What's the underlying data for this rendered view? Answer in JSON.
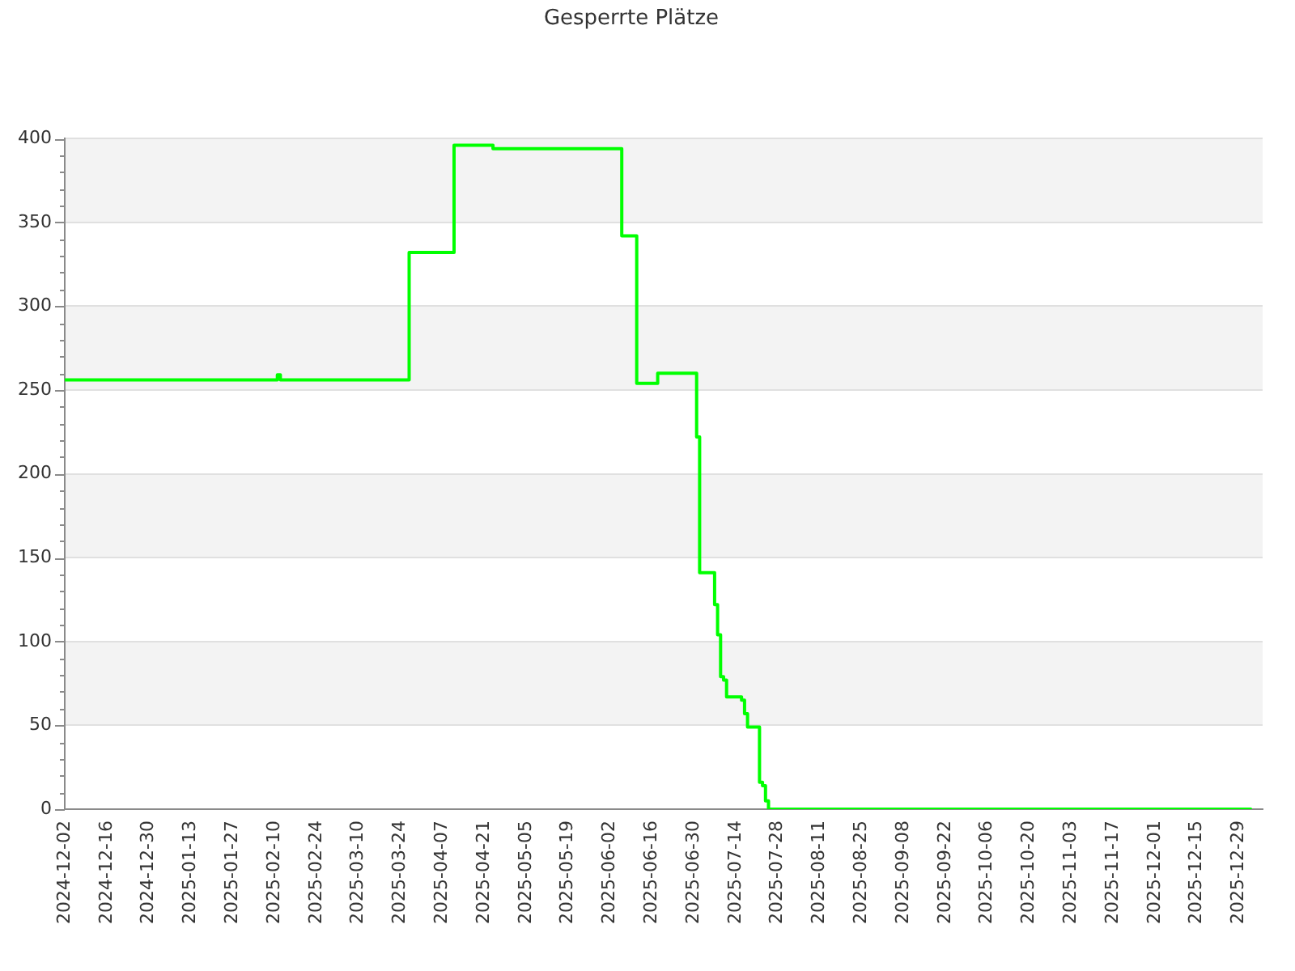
{
  "chart_data": {
    "type": "step",
    "title": "Gesperrte Plätze",
    "x": [
      "2024-12-02",
      "2025-02-11",
      "2025-02-12",
      "2025-03-27",
      "2025-04-11",
      "2025-04-24",
      "2025-06-06",
      "2025-06-11",
      "2025-06-18",
      "2025-07-01",
      "2025-07-02",
      "2025-07-07",
      "2025-07-08",
      "2025-07-09",
      "2025-07-10",
      "2025-07-11",
      "2025-07-16",
      "2025-07-17",
      "2025-07-18",
      "2025-07-22",
      "2025-07-23",
      "2025-07-24",
      "2025-07-25",
      "2026-01-02"
    ],
    "values": [
      256,
      259,
      256,
      332,
      396,
      394,
      342,
      254,
      260,
      222,
      141,
      122,
      104,
      79,
      77,
      67,
      65,
      57,
      49,
      16,
      14,
      5,
      0,
      0
    ],
    "color": "#00ff00",
    "marker": "none",
    "grid": "y",
    "xlim": [
      "2024-12-02",
      "2026-01-06"
    ],
    "xticks": [
      "2024-12-02",
      "2024-12-16",
      "2024-12-30",
      "2025-01-13",
      "2025-01-27",
      "2025-02-10",
      "2025-02-24",
      "2025-03-10",
      "2025-03-24",
      "2025-04-07",
      "2025-04-21",
      "2025-05-05",
      "2025-05-19",
      "2025-06-02",
      "2025-06-16",
      "2025-06-30",
      "2025-07-14",
      "2025-07-28",
      "2025-08-11",
      "2025-08-25",
      "2025-09-08",
      "2025-09-22",
      "2025-10-06",
      "2025-10-20",
      "2025-11-03",
      "2025-11-17",
      "2025-12-01",
      "2025-12-15",
      "2025-12-29"
    ],
    "ylim": [
      0,
      400
    ],
    "yticks": [
      0,
      {
        "value": 10,
        "label": null
      },
      {
        "value": 20,
        "label": null
      },
      {
        "value": 30,
        "label": null
      },
      {
        "value": 40,
        "label": null
      },
      50,
      {
        "value": 60,
        "label": null
      },
      {
        "value": 70,
        "label": null
      },
      {
        "value": 80,
        "label": null
      },
      {
        "value": 90,
        "label": null
      },
      100,
      {
        "value": 110,
        "label": null
      },
      {
        "value": 120,
        "label": null
      },
      {
        "value": 130,
        "label": null
      },
      {
        "value": 140,
        "label": null
      },
      150,
      {
        "value": 160,
        "label": null
      },
      {
        "value": 170,
        "label": null
      },
      {
        "value": 180,
        "label": null
      },
      {
        "value": 190,
        "label": null
      },
      200,
      {
        "value": 210,
        "label": null
      },
      {
        "value": 220,
        "label": null
      },
      {
        "value": 230,
        "label": null
      },
      {
        "value": 240,
        "label": null
      },
      250,
      {
        "value": 260,
        "label": null
      },
      {
        "value": 270,
        "label": null
      },
      {
        "value": 280,
        "label": null
      },
      {
        "value": 290,
        "label": null
      },
      300,
      {
        "value": 310,
        "label": null
      },
      {
        "value": 320,
        "label": null
      },
      {
        "value": 330,
        "label": null
      },
      {
        "value": 340,
        "label": null
      },
      350,
      {
        "value": 360,
        "label": null
      },
      {
        "value": 370,
        "label": null
      },
      {
        "value": 380,
        "label": null
      },
      {
        "value": 390,
        "label": null
      },
      400
    ]
  }
}
